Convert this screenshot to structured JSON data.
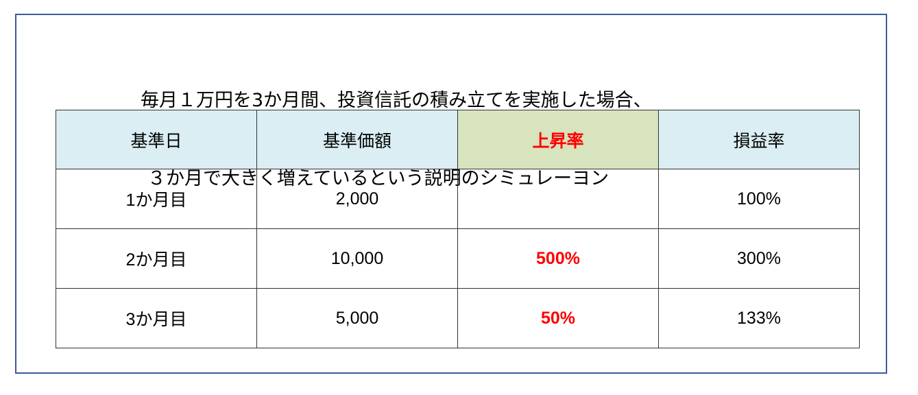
{
  "title": {
    "line1": "毎月１万円を3か月間、投資信託の積み立てを実施した場合、",
    "line2": "３か月で大きく増えているという説明のシミュレーヨン"
  },
  "table": {
    "headers": [
      "基準日",
      "基準価額",
      "上昇率",
      "損益率"
    ],
    "rows": [
      [
        "1か月目",
        "2,000",
        "",
        "100%"
      ],
      [
        "2か月目",
        "10,000",
        "500%",
        "300%"
      ],
      [
        "3か月目",
        "5,000",
        "50%",
        "133%"
      ]
    ]
  },
  "colors": {
    "header_bg": "#daeef3",
    "highlight_bg": "#d7e4bd",
    "highlight_text": "#ff0000",
    "frame": "#3a5a9a"
  }
}
